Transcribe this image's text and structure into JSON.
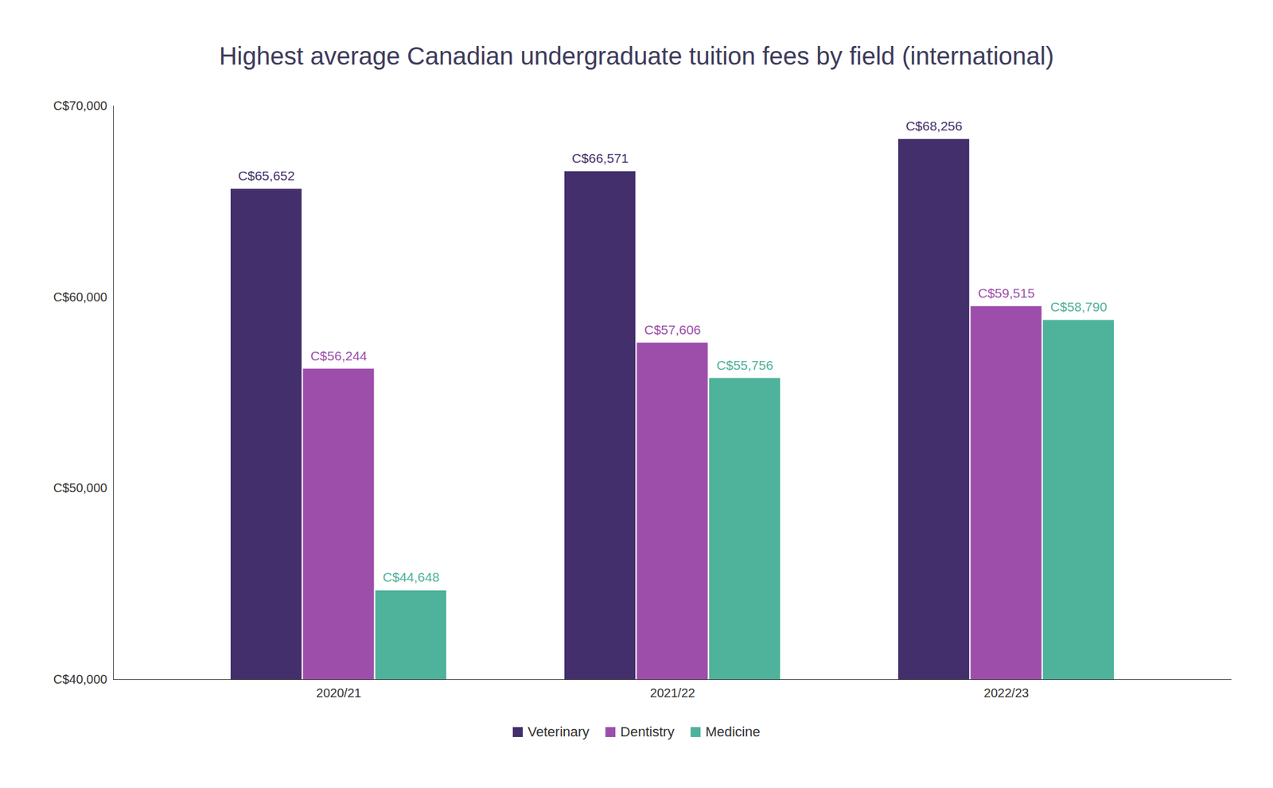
{
  "chart_data": {
    "type": "bar",
    "title": "Highest average Canadian undergraduate tuition fees by field (international)",
    "categories": [
      "2020/21",
      "2021/22",
      "2022/23"
    ],
    "series": [
      {
        "name": "Veterinary",
        "color": "#432f6b",
        "values": [
          65652,
          66571,
          68256
        ],
        "value_labels": [
          "C$65,652",
          "C$66,571",
          "C$68,256"
        ]
      },
      {
        "name": "Dentistry",
        "color": "#9d4eab",
        "values": [
          56244,
          57606,
          59515
        ],
        "value_labels": [
          "C$56,244",
          "C$57,606",
          "C$59,515"
        ]
      },
      {
        "name": "Medicine",
        "color": "#4fb29a",
        "values": [
          44648,
          55756,
          58790
        ],
        "value_labels": [
          "C$44,648",
          "C$55,756",
          "C$58,790"
        ]
      }
    ],
    "ylim": [
      40000,
      70000
    ],
    "yticks": [
      {
        "value": 40000,
        "label": "C$40,000"
      },
      {
        "value": 50000,
        "label": "C$50,000"
      },
      {
        "value": 60000,
        "label": "C$60,000"
      },
      {
        "value": 70000,
        "label": "C$70,000"
      }
    ],
    "grid": false,
    "legend": "bottom",
    "data_labels": true
  }
}
